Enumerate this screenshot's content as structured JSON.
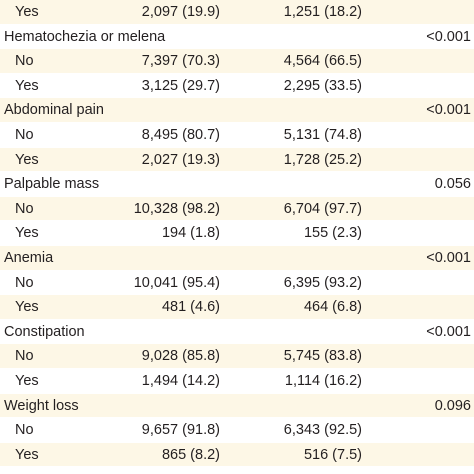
{
  "rows": [
    {
      "label": "Yes",
      "indent": true,
      "c1": "2,097 (19.9)",
      "c2": "1,251 (18.2)",
      "p": ""
    },
    {
      "label": "Hematochezia or melena",
      "indent": false,
      "c1": "",
      "c2": "",
      "p": "<0.001"
    },
    {
      "label": "No",
      "indent": true,
      "c1": "7,397 (70.3)",
      "c2": "4,564 (66.5)",
      "p": ""
    },
    {
      "label": "Yes",
      "indent": true,
      "c1": "3,125 (29.7)",
      "c2": "2,295 (33.5)",
      "p": ""
    },
    {
      "label": "Abdominal pain",
      "indent": false,
      "c1": "",
      "c2": "",
      "p": "<0.001"
    },
    {
      "label": "No",
      "indent": true,
      "c1": "8,495 (80.7)",
      "c2": "5,131 (74.8)",
      "p": ""
    },
    {
      "label": "Yes",
      "indent": true,
      "c1": "2,027 (19.3)",
      "c2": "1,728 (25.2)",
      "p": ""
    },
    {
      "label": "Palpable mass",
      "indent": false,
      "c1": "",
      "c2": "",
      "p": "0.056"
    },
    {
      "label": "No",
      "indent": true,
      "c1": "10,328 (98.2)",
      "c2": "6,704 (97.7)",
      "p": ""
    },
    {
      "label": "Yes",
      "indent": true,
      "c1": "194 (1.8)",
      "c2": "155 (2.3)",
      "p": ""
    },
    {
      "label": "Anemia",
      "indent": false,
      "c1": "",
      "c2": "",
      "p": "<0.001"
    },
    {
      "label": "No",
      "indent": true,
      "c1": "10,041 (95.4)",
      "c2": "6,395 (93.2)",
      "p": ""
    },
    {
      "label": "Yes",
      "indent": true,
      "c1": "481 (4.6)",
      "c2": "464 (6.8)",
      "p": ""
    },
    {
      "label": "Constipation",
      "indent": false,
      "c1": "",
      "c2": "",
      "p": "<0.001"
    },
    {
      "label": "No",
      "indent": true,
      "c1": "9,028 (85.8)",
      "c2": "5,745 (83.8)",
      "p": ""
    },
    {
      "label": "Yes",
      "indent": true,
      "c1": "1,494 (14.2)",
      "c2": "1,114 (16.2)",
      "p": ""
    },
    {
      "label": "Weight loss",
      "indent": false,
      "c1": "",
      "c2": "",
      "p": "0.096"
    },
    {
      "label": "No",
      "indent": true,
      "c1": "9,657 (91.8)",
      "c2": "6,343 (92.5)",
      "p": ""
    },
    {
      "label": "Yes",
      "indent": true,
      "c1": "865 (8.2)",
      "c2": "516 (7.5)",
      "p": ""
    }
  ]
}
